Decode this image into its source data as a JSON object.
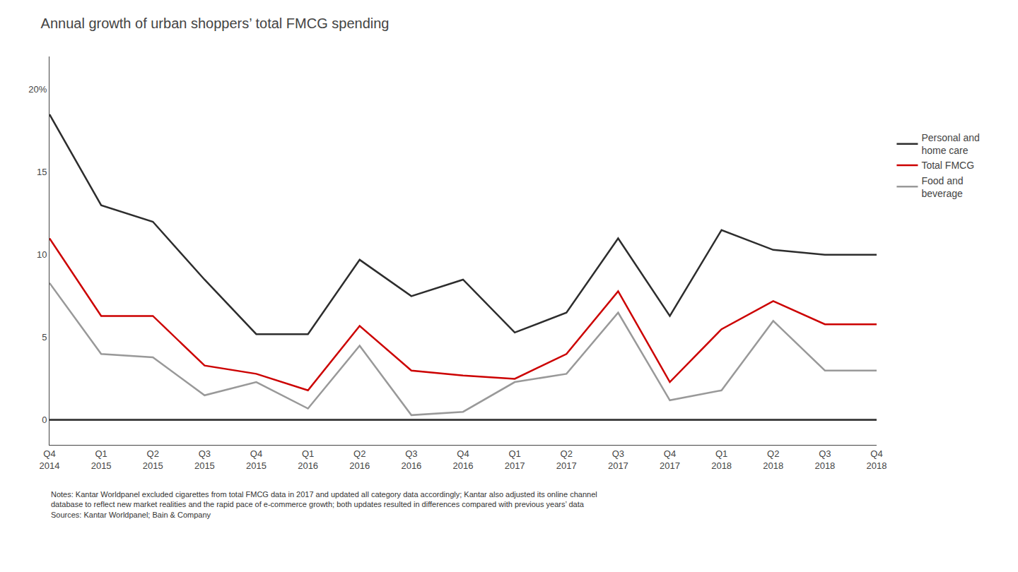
{
  "chart_data": {
    "type": "line",
    "title": "Annual growth of urban shoppers’ total FMCG spending",
    "categories": [
      "Q4\n2014",
      "Q1\n2015",
      "Q2\n2015",
      "Q3\n2015",
      "Q4\n2015",
      "Q1\n2016",
      "Q2\n2016",
      "Q3\n2016",
      "Q4\n2016",
      "Q1\n2017",
      "Q2\n2017",
      "Q3\n2017",
      "Q4\n2017",
      "Q1\n2018",
      "Q2\n2018",
      "Q3\n2018",
      "Q4\n2018"
    ],
    "series": [
      {
        "name": "Personal and\nhome care",
        "color": "#2d2d2d",
        "values": [
          18.5,
          13.0,
          12.0,
          8.5,
          5.2,
          5.2,
          9.7,
          7.5,
          8.5,
          5.3,
          6.5,
          11.0,
          6.3,
          11.5,
          10.3,
          10.0,
          10.0
        ]
      },
      {
        "name": "Total FMCG",
        "color": "#cc0000",
        "values": [
          11.0,
          6.3,
          6.3,
          3.3,
          2.8,
          1.8,
          5.7,
          3.0,
          2.7,
          2.5,
          4.0,
          7.8,
          2.3,
          5.5,
          7.2,
          5.8,
          5.8
        ]
      },
      {
        "name": "Food and\nbeverage",
        "color": "#999999",
        "values": [
          8.3,
          4.0,
          3.8,
          1.5,
          2.3,
          0.7,
          4.5,
          0.3,
          0.5,
          2.3,
          2.8,
          6.5,
          1.2,
          1.8,
          6.0,
          3.0,
          3.0
        ]
      }
    ],
    "ylim": [
      -1.5,
      22
    ],
    "yticks": [
      0,
      5,
      10,
      15,
      {
        "value": 20,
        "label": "20%"
      }
    ],
    "grid": false,
    "legend": "right",
    "annotations": [
      "Notes: Kantar Worldpanel excluded cigarettes from total FMCG data in 2017 and updated all category data accordingly; Kantar also adjusted its online channel\ndatabase to reflect new market realities and the rapid pace of e-commerce growth; both updates resulted in differences compared with previous years’ data\nSources: Kantar Worldpanel; Bain & Company"
    ]
  }
}
